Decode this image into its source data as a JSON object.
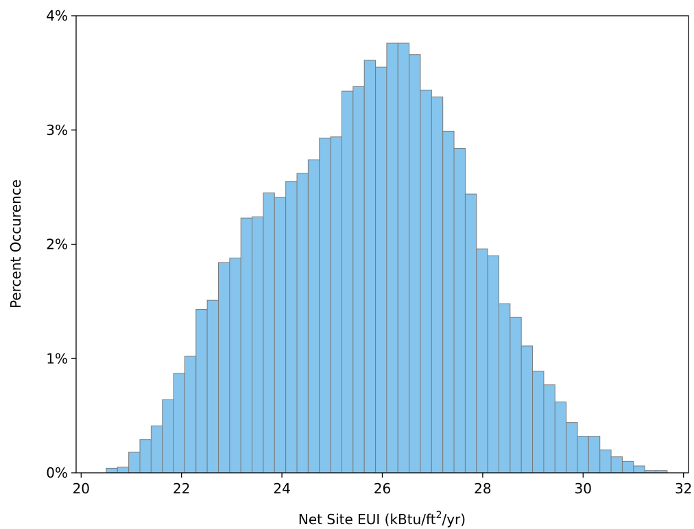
{
  "chart_data": {
    "type": "bar",
    "title": "",
    "xlabel": "Net Site EUI (kBtu/ft",
    "xlabel_superscript": "2",
    "xlabel_suffix": "/yr)",
    "ylabel": "Percent Occurence",
    "xlim": [
      19.9,
      32.1
    ],
    "ylim": [
      0,
      4
    ],
    "xticks": [
      20,
      22,
      24,
      26,
      28,
      30,
      32
    ],
    "xtick_labels": [
      "20",
      "22",
      "24",
      "26",
      "28",
      "30",
      "32"
    ],
    "yticks": [
      0,
      1,
      2,
      3,
      4
    ],
    "ytick_labels": [
      "0%",
      "1%",
      "2%",
      "3%",
      "4%"
    ],
    "grid": false,
    "bar_color": "#85c4ec",
    "bar_edge_color": "#7a7a7a",
    "bin_start": 20.5,
    "bin_width": 0.2235,
    "values": [
      0.04,
      0.05,
      0.18,
      0.29,
      0.41,
      0.64,
      0.87,
      1.02,
      1.43,
      1.51,
      1.84,
      1.88,
      2.23,
      2.24,
      2.45,
      2.41,
      2.55,
      2.62,
      2.74,
      2.93,
      2.94,
      3.34,
      3.38,
      3.61,
      3.55,
      3.76,
      3.76,
      3.66,
      3.35,
      3.29,
      2.99,
      2.84,
      2.44,
      1.96,
      1.9,
      1.48,
      1.36,
      1.11,
      0.89,
      0.77,
      0.62,
      0.44,
      0.32,
      0.32,
      0.2,
      0.14,
      0.1,
      0.06,
      0.02,
      0.02
    ]
  }
}
